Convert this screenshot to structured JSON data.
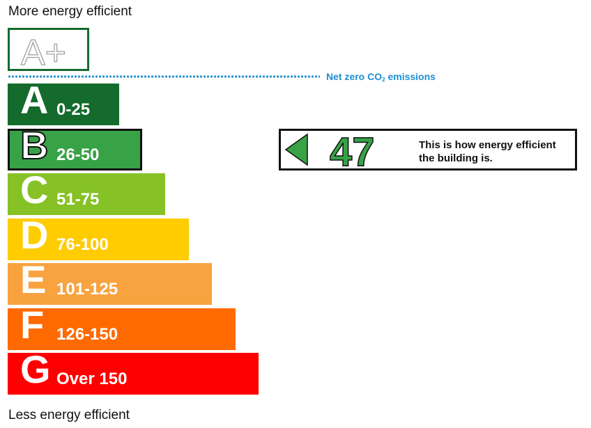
{
  "labels": {
    "top": "More energy efficient",
    "bottom": "Less energy efficient"
  },
  "net_zero": {
    "prefix": "Net zero CO",
    "subscript": "2",
    "suffix": " emissions",
    "color": "#1f8fd1"
  },
  "chart_data": {
    "type": "bar",
    "categories": [
      "A+",
      "A",
      "B",
      "C",
      "D",
      "E",
      "F",
      "G"
    ],
    "bands": [
      {
        "letter": "A+",
        "range": "",
        "min": null,
        "max": 0,
        "color": "#176a2e",
        "outline_only": true
      },
      {
        "letter": "A",
        "range": "0-25",
        "min": 0,
        "max": 25,
        "color": "#146b2c"
      },
      {
        "letter": "B",
        "range": "26-50",
        "min": 26,
        "max": 50,
        "color": "#37a346"
      },
      {
        "letter": "C",
        "range": "51-75",
        "min": 51,
        "max": 75,
        "color": "#86c226"
      },
      {
        "letter": "D",
        "range": "76-100",
        "min": 76,
        "max": 100,
        "color": "#ffcc00"
      },
      {
        "letter": "E",
        "range": "101-125",
        "min": 101,
        "max": 125,
        "color": "#f8a340"
      },
      {
        "letter": "F",
        "range": "126-150",
        "min": 126,
        "max": 150,
        "color": "#ff6a00"
      },
      {
        "letter": "G",
        "range": "Over 150",
        "min": 151,
        "max": null,
        "color": "#ff0000"
      }
    ],
    "current_band": "B",
    "rating": {
      "value": "47",
      "caption": "This is how energy efficient the building is.",
      "color": "#37a346"
    }
  }
}
